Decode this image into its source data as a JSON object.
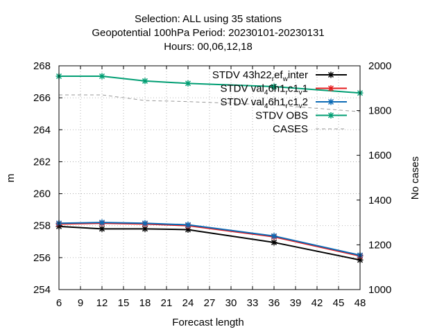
{
  "chart_data": {
    "type": "line",
    "title_lines": [
      "Selection: ALL using    35 stations",
      "Geopotential 100hPa   Period: 20230101-20230131",
      "Hours:  00,06,12,18"
    ],
    "xlabel": "Forecast length",
    "ylabel": "m",
    "y2label": "No cases",
    "xlim": [
      6,
      48
    ],
    "ylim": [
      254,
      268
    ],
    "y2lim": [
      1000,
      2000
    ],
    "xticks": [
      6,
      9,
      12,
      15,
      18,
      21,
      24,
      27,
      30,
      33,
      36,
      39,
      42,
      45,
      48
    ],
    "yticks": [
      254,
      256,
      258,
      260,
      262,
      264,
      266,
      268
    ],
    "y2ticks": [
      1000,
      1200,
      1400,
      1600,
      1800,
      2000
    ],
    "grid": true,
    "legend_position": "top-right",
    "x": [
      6,
      12,
      18,
      24,
      36,
      48
    ],
    "series": [
      {
        "name": "STDV 43h22_ref_winter",
        "legend_parts": [
          [
            "STDV 43h22",
            "n"
          ],
          [
            "r",
            "sub"
          ],
          [
            "ef",
            "n"
          ],
          [
            "w",
            "sub"
          ],
          [
            "inter",
            "n"
          ]
        ],
        "color": "#000000",
        "axis": "y",
        "dashed": false,
        "values": [
          257.95,
          257.8,
          257.8,
          257.75,
          256.95,
          255.85
        ]
      },
      {
        "name": "STDV val46h1_rc1_v1",
        "legend_parts": [
          [
            "STDV val",
            "n"
          ],
          [
            "4",
            "sub"
          ],
          [
            "6h1",
            "n"
          ],
          [
            "r",
            "sub"
          ],
          [
            "c1",
            "n"
          ],
          [
            "v",
            "sub"
          ],
          [
            "1",
            "n"
          ]
        ],
        "color": "#e41a1c",
        "axis": "y",
        "dashed": false,
        "values": [
          258.1,
          258.15,
          258.1,
          258.0,
          257.3,
          256.1
        ]
      },
      {
        "name": "STDV val46h1_rc1_v2",
        "legend_parts": [
          [
            "STDV val",
            "n"
          ],
          [
            "4",
            "sub"
          ],
          [
            "6h1",
            "n"
          ],
          [
            "r",
            "sub"
          ],
          [
            "c1",
            "n"
          ],
          [
            "v",
            "sub"
          ],
          [
            "2",
            "n"
          ]
        ],
        "color": "#0b6ab5",
        "axis": "y",
        "dashed": false,
        "values": [
          258.15,
          258.2,
          258.15,
          258.05,
          257.35,
          256.15
        ]
      },
      {
        "name": "STDV OBS",
        "legend_parts": [
          [
            "STDV OBS",
            "n"
          ]
        ],
        "color": "#009e73",
        "axis": "y",
        "dashed": false,
        "values": [
          267.35,
          267.35,
          267.05,
          266.9,
          266.7,
          266.3
        ]
      },
      {
        "name": "CASES",
        "legend_parts": [
          [
            "CASES",
            "n"
          ]
        ],
        "color": "#999999",
        "axis": "y2",
        "dashed": true,
        "values": [
          1870,
          1870,
          1845,
          1840,
          1825,
          1795
        ]
      }
    ]
  }
}
